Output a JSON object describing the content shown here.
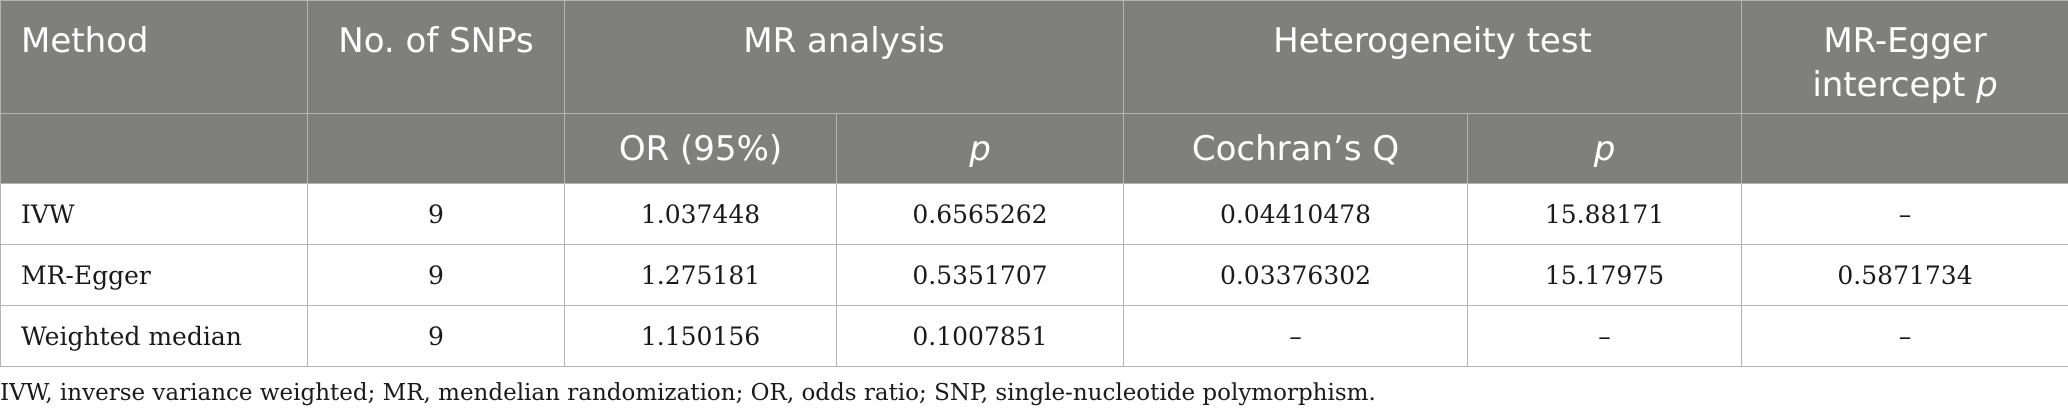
{
  "table": {
    "header_row1": {
      "method": "Method",
      "no_snps": "No. of SNPs",
      "mr_analysis": "MR analysis",
      "heterogeneity": "Heterogeneity test",
      "egger_intercept_line1": "MR-Egger",
      "egger_intercept_line2": "intercept",
      "egger_intercept_p": "p"
    },
    "header_row2": {
      "or_95": "OR (95%)",
      "mr_p": "p",
      "cochran_q": "Cochran’s Q",
      "het_p": "p"
    },
    "rows": [
      {
        "method": "IVW",
        "no_snps": "9",
        "or_95": "1.037448",
        "mr_p": "0.6565262",
        "cochran_q": "0.04410478",
        "het_p": "15.88171",
        "egger_p": "–"
      },
      {
        "method": "MR-Egger",
        "no_snps": "9",
        "or_95": "1.275181",
        "mr_p": "0.5351707",
        "cochran_q": "0.03376302",
        "het_p": "15.17975",
        "egger_p": "0.5871734"
      },
      {
        "method": "Weighted median",
        "no_snps": "9",
        "or_95": "1.150156",
        "mr_p": "0.1007851",
        "cochran_q": "–",
        "het_p": "–",
        "egger_p": "–"
      }
    ]
  },
  "footnote": "IVW, inverse variance weighted; MR, mendelian randomization; OR, odds ratio; SNP, single-nucleotide polymorphism."
}
